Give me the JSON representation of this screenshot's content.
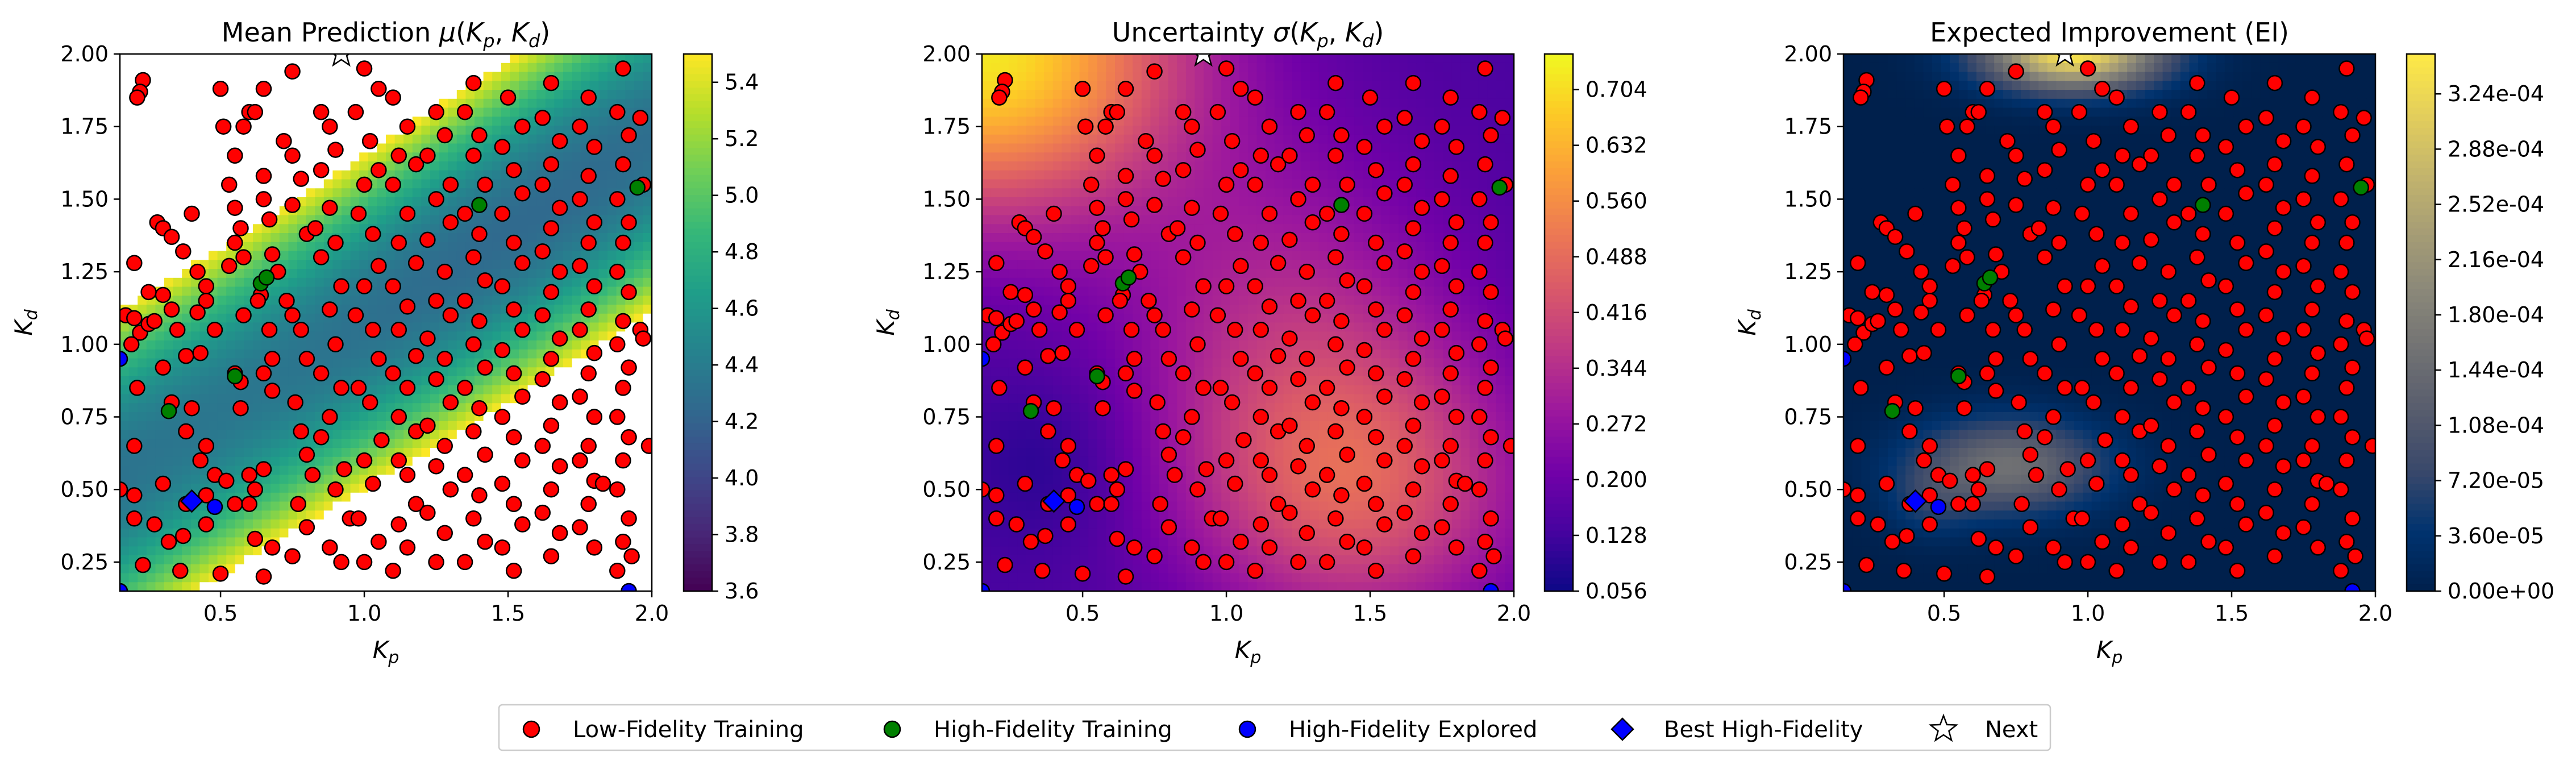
{
  "chart_data": [
    {
      "type": "heatmap",
      "title": "Mean Prediction μ(K_p, K_d)",
      "xlabel": "K_p",
      "ylabel": "K_d",
      "xlim": [
        0.15,
        2.0
      ],
      "ylim": [
        0.15,
        2.0
      ],
      "xticks": [
        "0.5",
        "1.0",
        "1.5",
        "2.0"
      ],
      "yticks": [
        "0.25",
        "0.50",
        "0.75",
        "1.00",
        "1.25",
        "1.50",
        "1.75",
        "2.00"
      ],
      "colormap": "viridis",
      "clim": [
        3.6,
        5.5
      ],
      "colorbar_ticks": [
        "3.6",
        "3.8",
        "4.0",
        "4.2",
        "4.4",
        "4.6",
        "4.8",
        "5.0",
        "5.2",
        "5.4"
      ],
      "note_text": "values above 5.5 left blank (white)"
    },
    {
      "type": "heatmap",
      "title": "Uncertainty σ(K_p, K_d)",
      "xlabel": "K_p",
      "ylabel": "K_d",
      "xlim": [
        0.15,
        2.0
      ],
      "ylim": [
        0.15,
        2.0
      ],
      "xticks": [
        "0.5",
        "1.0",
        "1.5",
        "2.0"
      ],
      "yticks": [
        "0.25",
        "0.50",
        "0.75",
        "1.00",
        "1.25",
        "1.50",
        "1.75",
        "2.00"
      ],
      "colormap": "plasma",
      "clim": [
        0.056,
        0.75
      ],
      "colorbar_ticks": [
        "0.056",
        "0.128",
        "0.200",
        "0.272",
        "0.344",
        "0.416",
        "0.488",
        "0.560",
        "0.632",
        "0.704"
      ]
    },
    {
      "type": "heatmap",
      "title": "Expected Improvement (EI)",
      "xlabel": "K_p",
      "ylabel": "K_d",
      "xlim": [
        0.15,
        2.0
      ],
      "ylim": [
        0.15,
        2.0
      ],
      "xticks": [
        "0.5",
        "1.0",
        "1.5",
        "2.0"
      ],
      "yticks": [
        "0.25",
        "0.50",
        "0.75",
        "1.00",
        "1.25",
        "1.50",
        "1.75",
        "2.00"
      ],
      "colormap": "cividis",
      "clim": [
        0,
        0.00035
      ],
      "colorbar_ticks": [
        "0.00e+00",
        "3.60e-05",
        "7.20e-05",
        "1.08e-04",
        "1.44e-04",
        "1.80e-04",
        "2.16e-04",
        "2.52e-04",
        "2.88e-04",
        "3.24e-04"
      ]
    }
  ],
  "points": {
    "low_fidelity": [
      [
        0.23,
        1.91
      ],
      [
        0.22,
        1.87
      ],
      [
        0.21,
        1.85
      ],
      [
        0.2,
        1.28
      ],
      [
        0.17,
        1.1
      ],
      [
        0.2,
        1.09
      ],
      [
        0.22,
        1.04
      ],
      [
        0.25,
        1.07
      ],
      [
        0.19,
        1.0
      ],
      [
        0.21,
        0.85
      ],
      [
        0.2,
        0.65
      ],
      [
        0.15,
        0.5
      ],
      [
        0.2,
        0.48
      ],
      [
        0.2,
        0.4
      ],
      [
        0.23,
        0.24
      ],
      [
        0.28,
        1.42
      ],
      [
        0.3,
        1.4
      ],
      [
        0.33,
        1.37
      ],
      [
        0.37,
        1.32
      ],
      [
        0.25,
        1.18
      ],
      [
        0.3,
        1.17
      ],
      [
        0.33,
        1.12
      ],
      [
        0.27,
        1.08
      ],
      [
        0.35,
        1.05
      ],
      [
        0.38,
        0.96
      ],
      [
        0.3,
        0.92
      ],
      [
        0.33,
        0.8
      ],
      [
        0.38,
        0.7
      ],
      [
        0.3,
        0.52
      ],
      [
        0.38,
        0.45
      ],
      [
        0.27,
        0.38
      ],
      [
        0.32,
        0.32
      ],
      [
        0.37,
        0.34
      ],
      [
        0.36,
        0.22
      ],
      [
        0.4,
        1.45
      ],
      [
        0.42,
        1.25
      ],
      [
        0.45,
        1.2
      ],
      [
        0.45,
        1.15
      ],
      [
        0.42,
        1.11
      ],
      [
        0.48,
        1.05
      ],
      [
        0.43,
        0.97
      ],
      [
        0.4,
        0.78
      ],
      [
        0.45,
        0.65
      ],
      [
        0.43,
        0.6
      ],
      [
        0.48,
        0.55
      ],
      [
        0.52,
        0.53
      ],
      [
        0.55,
        0.45
      ],
      [
        0.45,
        0.48
      ],
      [
        0.45,
        0.38
      ],
      [
        0.5,
        0.21
      ],
      [
        0.5,
        1.88
      ],
      [
        0.51,
        1.75
      ],
      [
        0.55,
        1.65
      ],
      [
        0.58,
        1.75
      ],
      [
        0.6,
        1.8
      ],
      [
        0.53,
        1.55
      ],
      [
        0.55,
        1.47
      ],
      [
        0.57,
        1.4
      ],
      [
        0.55,
        1.35
      ],
      [
        0.58,
        1.3
      ],
      [
        0.53,
        1.27
      ],
      [
        0.58,
        1.1
      ],
      [
        0.55,
        0.9
      ],
      [
        0.57,
        0.87
      ],
      [
        0.57,
        0.78
      ],
      [
        0.6,
        0.55
      ],
      [
        0.62,
        0.5
      ],
      [
        0.6,
        0.45
      ],
      [
        0.62,
        0.33
      ],
      [
        0.65,
        1.88
      ],
      [
        0.62,
        1.8
      ],
      [
        0.65,
        1.58
      ],
      [
        0.65,
        1.5
      ],
      [
        0.67,
        1.43
      ],
      [
        0.68,
        1.31
      ],
      [
        0.7,
        1.25
      ],
      [
        0.64,
        1.17
      ],
      [
        0.63,
        1.15
      ],
      [
        0.67,
        1.05
      ],
      [
        0.68,
        0.95
      ],
      [
        0.65,
        0.9
      ],
      [
        0.68,
        0.84
      ],
      [
        0.65,
        0.57
      ],
      [
        0.68,
        0.3
      ],
      [
        0.65,
        0.2
      ],
      [
        0.75,
        1.94
      ],
      [
        0.72,
        1.7
      ],
      [
        0.75,
        1.65
      ],
      [
        0.78,
        1.57
      ],
      [
        0.75,
        1.48
      ],
      [
        0.8,
        1.38
      ],
      [
        0.73,
        1.15
      ],
      [
        0.75,
        1.1
      ],
      [
        0.78,
        1.05
      ],
      [
        0.8,
        0.95
      ],
      [
        0.76,
        0.8
      ],
      [
        0.78,
        0.7
      ],
      [
        0.8,
        0.62
      ],
      [
        0.82,
        0.55
      ],
      [
        0.77,
        0.45
      ],
      [
        0.8,
        0.37
      ],
      [
        0.75,
        0.27
      ],
      [
        0.85,
        1.8
      ],
      [
        0.88,
        1.75
      ],
      [
        0.85,
        1.6
      ],
      [
        0.9,
        1.67
      ],
      [
        0.88,
        1.47
      ],
      [
        0.83,
        1.4
      ],
      [
        0.9,
        1.35
      ],
      [
        0.85,
        1.3
      ],
      [
        0.92,
        1.2
      ],
      [
        0.88,
        1.12
      ],
      [
        0.9,
        1.0
      ],
      [
        0.85,
        0.9
      ],
      [
        0.92,
        0.85
      ],
      [
        0.88,
        0.75
      ],
      [
        0.85,
        0.68
      ],
      [
        0.93,
        0.57
      ],
      [
        0.9,
        0.5
      ],
      [
        0.95,
        0.4
      ],
      [
        0.88,
        0.3
      ],
      [
        0.92,
        0.25
      ],
      [
        1.0,
        1.95
      ],
      [
        1.05,
        1.88
      ],
      [
        0.97,
        1.8
      ],
      [
        1.02,
        1.7
      ],
      [
        1.05,
        1.6
      ],
      [
        1.0,
        1.55
      ],
      [
        0.98,
        1.45
      ],
      [
        1.03,
        1.38
      ],
      [
        1.05,
        1.27
      ],
      [
        1.0,
        1.2
      ],
      [
        0.97,
        1.1
      ],
      [
        1.03,
        1.05
      ],
      [
        1.05,
        0.95
      ],
      [
        0.98,
        0.85
      ],
      [
        1.02,
        0.8
      ],
      [
        1.06,
        0.67
      ],
      [
        1.0,
        0.6
      ],
      [
        1.03,
        0.52
      ],
      [
        0.98,
        0.4
      ],
      [
        1.05,
        0.32
      ],
      [
        1.0,
        0.25
      ],
      [
        1.1,
        1.85
      ],
      [
        1.15,
        1.75
      ],
      [
        1.12,
        1.65
      ],
      [
        1.18,
        1.62
      ],
      [
        1.1,
        1.55
      ],
      [
        1.15,
        1.45
      ],
      [
        1.12,
        1.35
      ],
      [
        1.18,
        1.28
      ],
      [
        1.1,
        1.2
      ],
      [
        1.15,
        1.13
      ],
      [
        1.12,
        1.05
      ],
      [
        1.18,
        0.96
      ],
      [
        1.1,
        0.9
      ],
      [
        1.15,
        0.85
      ],
      [
        1.12,
        0.75
      ],
      [
        1.18,
        0.7
      ],
      [
        1.12,
        0.6
      ],
      [
        1.15,
        0.55
      ],
      [
        1.18,
        0.45
      ],
      [
        1.12,
        0.38
      ],
      [
        1.15,
        0.3
      ],
      [
        1.1,
        0.22
      ],
      [
        1.25,
        1.8
      ],
      [
        1.28,
        1.72
      ],
      [
        1.22,
        1.65
      ],
      [
        1.3,
        1.55
      ],
      [
        1.25,
        1.5
      ],
      [
        1.3,
        1.42
      ],
      [
        1.22,
        1.36
      ],
      [
        1.28,
        1.25
      ],
      [
        1.25,
        1.15
      ],
      [
        1.3,
        1.1
      ],
      [
        1.22,
        1.02
      ],
      [
        1.28,
        0.95
      ],
      [
        1.25,
        0.88
      ],
      [
        1.3,
        0.8
      ],
      [
        1.22,
        0.72
      ],
      [
        1.28,
        0.65
      ],
      [
        1.25,
        0.58
      ],
      [
        1.3,
        0.5
      ],
      [
        1.22,
        0.42
      ],
      [
        1.28,
        0.35
      ],
      [
        1.25,
        0.25
      ],
      [
        1.38,
        1.9
      ],
      [
        1.35,
        1.8
      ],
      [
        1.4,
        1.72
      ],
      [
        1.38,
        1.65
      ],
      [
        1.42,
        1.55
      ],
      [
        1.35,
        1.45
      ],
      [
        1.4,
        1.38
      ],
      [
        1.38,
        1.3
      ],
      [
        1.42,
        1.22
      ],
      [
        1.35,
        1.15
      ],
      [
        1.4,
        1.08
      ],
      [
        1.38,
        1.0
      ],
      [
        1.42,
        0.92
      ],
      [
        1.35,
        0.85
      ],
      [
        1.4,
        0.78
      ],
      [
        1.38,
        0.7
      ],
      [
        1.42,
        0.62
      ],
      [
        1.35,
        0.55
      ],
      [
        1.4,
        0.48
      ],
      [
        1.38,
        0.4
      ],
      [
        1.42,
        0.32
      ],
      [
        1.35,
        0.25
      ],
      [
        1.5,
        1.85
      ],
      [
        1.55,
        1.75
      ],
      [
        1.48,
        1.68
      ],
      [
        1.52,
        1.6
      ],
      [
        1.55,
        1.52
      ],
      [
        1.48,
        1.45
      ],
      [
        1.52,
        1.35
      ],
      [
        1.55,
        1.28
      ],
      [
        1.48,
        1.2
      ],
      [
        1.52,
        1.12
      ],
      [
        1.55,
        1.05
      ],
      [
        1.48,
        0.98
      ],
      [
        1.52,
        0.9
      ],
      [
        1.55,
        0.82
      ],
      [
        1.48,
        0.75
      ],
      [
        1.52,
        0.68
      ],
      [
        1.55,
        0.6
      ],
      [
        1.48,
        0.52
      ],
      [
        1.52,
        0.45
      ],
      [
        1.55,
        0.38
      ],
      [
        1.48,
        0.3
      ],
      [
        1.52,
        0.22
      ],
      [
        1.65,
        1.9
      ],
      [
        1.62,
        1.78
      ],
      [
        1.68,
        1.7
      ],
      [
        1.65,
        1.62
      ],
      [
        1.62,
        1.55
      ],
      [
        1.68,
        1.47
      ],
      [
        1.65,
        1.4
      ],
      [
        1.62,
        1.32
      ],
      [
        1.68,
        1.25
      ],
      [
        1.65,
        1.18
      ],
      [
        1.62,
        1.1
      ],
      [
        1.68,
        1.02
      ],
      [
        1.65,
        0.95
      ],
      [
        1.62,
        0.88
      ],
      [
        1.68,
        0.8
      ],
      [
        1.65,
        0.72
      ],
      [
        1.62,
        0.65
      ],
      [
        1.68,
        0.58
      ],
      [
        1.65,
        0.5
      ],
      [
        1.62,
        0.42
      ],
      [
        1.68,
        0.35
      ],
      [
        1.65,
        0.27
      ],
      [
        1.78,
        1.85
      ],
      [
        1.75,
        1.75
      ],
      [
        1.8,
        1.68
      ],
      [
        1.78,
        1.58
      ],
      [
        1.75,
        1.5
      ],
      [
        1.8,
        1.42
      ],
      [
        1.78,
        1.35
      ],
      [
        1.75,
        1.27
      ],
      [
        1.8,
        1.2
      ],
      [
        1.78,
        1.12
      ],
      [
        1.75,
        1.05
      ],
      [
        1.8,
        0.97
      ],
      [
        1.78,
        0.9
      ],
      [
        1.75,
        0.82
      ],
      [
        1.8,
        0.75
      ],
      [
        1.78,
        0.65
      ],
      [
        1.75,
        0.6
      ],
      [
        1.8,
        0.53
      ],
      [
        1.83,
        0.52
      ],
      [
        1.78,
        0.45
      ],
      [
        1.75,
        0.37
      ],
      [
        1.8,
        0.3
      ],
      [
        1.9,
        1.95
      ],
      [
        1.88,
        1.8
      ],
      [
        1.92,
        1.72
      ],
      [
        1.9,
        1.62
      ],
      [
        1.88,
        1.5
      ],
      [
        1.92,
        1.42
      ],
      [
        1.9,
        1.35
      ],
      [
        1.88,
        1.25
      ],
      [
        1.92,
        1.18
      ],
      [
        1.9,
        1.08
      ],
      [
        1.88,
        1.0
      ],
      [
        1.92,
        0.92
      ],
      [
        1.9,
        0.85
      ],
      [
        1.88,
        0.75
      ],
      [
        1.92,
        0.68
      ],
      [
        1.9,
        0.6
      ],
      [
        1.88,
        0.5
      ],
      [
        1.92,
        0.4
      ],
      [
        1.9,
        0.32
      ],
      [
        1.93,
        0.27
      ],
      [
        1.88,
        0.22
      ],
      [
        1.96,
        1.78
      ],
      [
        1.97,
        1.55
      ],
      [
        1.96,
        1.05
      ],
      [
        1.99,
        0.65
      ],
      [
        1.97,
        1.02
      ]
    ],
    "high_fidelity_training": [
      [
        0.32,
        0.77
      ],
      [
        0.55,
        0.89
      ],
      [
        0.64,
        1.21
      ],
      [
        0.66,
        1.23
      ],
      [
        1.4,
        1.48
      ],
      [
        1.95,
        1.54
      ]
    ],
    "high_fidelity_explored": [
      [
        0.15,
        0.95
      ],
      [
        0.48,
        0.44
      ],
      [
        1.92,
        0.15
      ],
      [
        0.15,
        0.15
      ]
    ],
    "best_high_fidelity": [
      0.4,
      0.46
    ],
    "next": [
      0.92,
      2.0
    ]
  },
  "legend": {
    "low_fidelity": "Low-Fidelity Training",
    "high_fidelity_training": "High-Fidelity Training",
    "high_fidelity_explored": "High-Fidelity Explored",
    "best_high_fidelity": "Best High-Fidelity",
    "next": "Next"
  },
  "colors": {
    "low_fidelity": "#ff0000",
    "high_fidelity_training": "#008000",
    "high_fidelity_explored": "#0000ff",
    "best_high_fidelity": "#0000ff",
    "next": "#ffffff",
    "edge": "#000000"
  }
}
